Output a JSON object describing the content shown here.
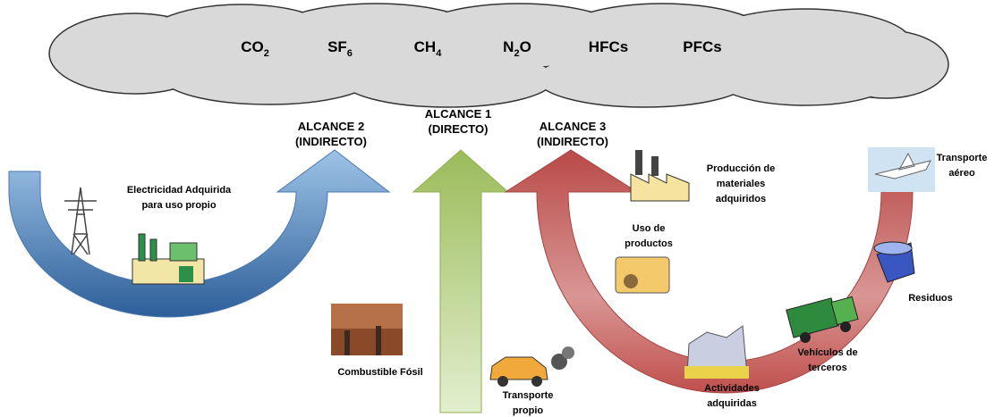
{
  "gases": [
    {
      "main": "CO",
      "sub": "2"
    },
    {
      "main": "SF",
      "sub": "6"
    },
    {
      "main": "CH",
      "sub": "4"
    },
    {
      "main": "N",
      "sub": "2",
      "tail": "O"
    },
    {
      "main": "HFCs"
    },
    {
      "main": "PFCs"
    }
  ],
  "scopes": [
    {
      "lines": [
        "ALCANCE 2",
        "(INDIRECTO)"
      ]
    },
    {
      "lines": [
        "ALCANCE 1",
        "(DIRECTO)"
      ]
    },
    {
      "lines": [
        "ALCANCE 3",
        "(INDIRECTO)"
      ]
    }
  ],
  "items": [
    {
      "lines": [
        "Electricidad Adquirida",
        "para uso propio"
      ]
    },
    {
      "lines": [
        "Combustible Fósil"
      ]
    },
    {
      "lines": [
        "Transporte",
        "propio"
      ]
    },
    {
      "lines": [
        "Producción de",
        "materiales",
        "adquiridos"
      ]
    },
    {
      "lines": [
        "Uso de",
        "productos"
      ]
    },
    {
      "lines": [
        "Transporte",
        "aéreo"
      ]
    },
    {
      "lines": [
        "Residuos"
      ]
    },
    {
      "lines": [
        "Vehículos de",
        "terceros"
      ]
    },
    {
      "lines": [
        "Actividades",
        "adquiridas"
      ]
    }
  ]
}
